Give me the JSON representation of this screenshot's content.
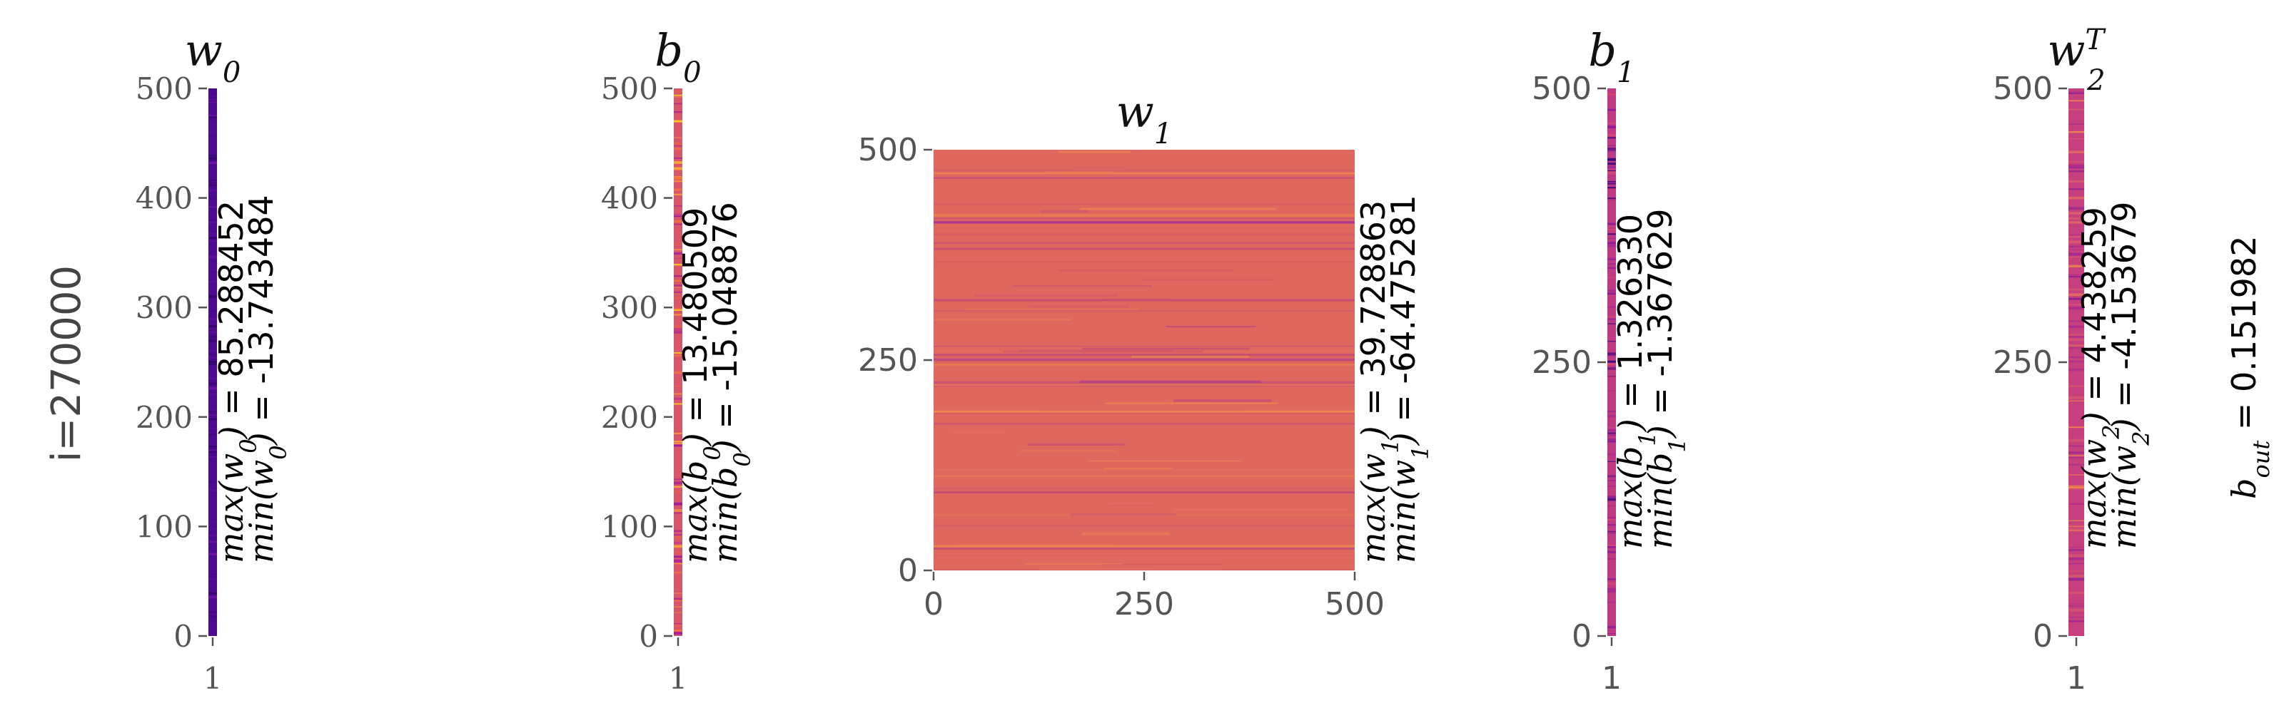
{
  "figure": {
    "ylabel": "i=270000",
    "b_out_label": "b",
    "b_out_sub": "out",
    "b_out_value": " = 0.151982"
  },
  "chart_data": [
    {
      "type": "heatmap",
      "id": "w0",
      "title": "w",
      "title_sub": "0",
      "title_sup": "",
      "x_ticks": [
        "1"
      ],
      "y_ticks": [
        "0",
        "100",
        "200",
        "300",
        "400",
        "500"
      ],
      "ylim": [
        0,
        500
      ],
      "max_label": "max",
      "max_var": "w",
      "max_sub": "0",
      "max_value": " = 85.288452",
      "min_label": "min",
      "min_var": "w",
      "min_sub": "0",
      "min_value": " = -13.743484",
      "base_color": "#4a0c8f",
      "stripe_colors": [
        "#5b0f9e",
        "#3d0a7a",
        "#6a14a6",
        "#2f0668"
      ]
    },
    {
      "type": "heatmap",
      "id": "b0",
      "title": "b",
      "title_sub": "0",
      "title_sup": "",
      "x_ticks": [
        "1"
      ],
      "y_ticks": [
        "0",
        "100",
        "200",
        "300",
        "400",
        "500"
      ],
      "ylim": [
        0,
        500
      ],
      "max_label": "max",
      "max_var": "b",
      "max_sub": "0",
      "max_value": " = 13.480509",
      "min_label": "min",
      "min_var": "b",
      "min_sub": "0",
      "min_value": " = -15.048876",
      "base_color": "#d8566b",
      "stripe_colors": [
        "#f89540",
        "#b12a90",
        "#fdca26",
        "#e8604d",
        "#9c179e",
        "#f3763b"
      ]
    },
    {
      "type": "heatmap",
      "id": "w1",
      "title": "w",
      "title_sub": "1",
      "title_sup": "",
      "x_ticks": [
        "0",
        "250",
        "500"
      ],
      "y_ticks": [
        "0",
        "250",
        "500"
      ],
      "xlim": [
        0,
        500
      ],
      "ylim": [
        0,
        500
      ],
      "max_label": "max",
      "max_var": "w",
      "max_sub": "1",
      "max_value": " = 39.728863",
      "min_label": "min",
      "min_var": "w",
      "min_sub": "1",
      "min_value": " = -64.475281",
      "base_color": "#e0675e",
      "stripe_colors": [
        "#c84a6f",
        "#b23a8a",
        "#ea7a55",
        "#f6a042",
        "#9c2aa0"
      ]
    },
    {
      "type": "heatmap",
      "id": "b1",
      "title": "b",
      "title_sub": "1",
      "title_sup": "",
      "x_ticks": [
        "1"
      ],
      "y_ticks": [
        "0",
        "250",
        "500"
      ],
      "ylim": [
        0,
        500
      ],
      "max_label": "max",
      "max_var": "b",
      "max_sub": "1",
      "max_value": " = 1.326330",
      "min_label": "min",
      "min_var": "b",
      "min_sub": "1",
      "min_value": " = -1.367629",
      "base_color": "#c03a83",
      "stripe_colors": [
        "#a0288f",
        "#d8486f",
        "#3a0a80",
        "#8a1d98"
      ]
    },
    {
      "type": "heatmap",
      "id": "w2",
      "title": "w",
      "title_sub": "2",
      "title_sup": "T",
      "x_ticks": [
        "1"
      ],
      "y_ticks": [
        "0",
        "250",
        "500"
      ],
      "ylim": [
        0,
        500
      ],
      "max_label": "max",
      "max_var": "w",
      "max_sub": "2",
      "max_value": " = 4.438259",
      "min_label": "min",
      "min_var": "w",
      "min_sub": "2",
      "min_value": " = -4.153679",
      "base_color": "#c6407e",
      "stripe_colors": [
        "#a82a8e",
        "#d85a6c",
        "#f08a4a",
        "#8e1f96"
      ]
    }
  ]
}
